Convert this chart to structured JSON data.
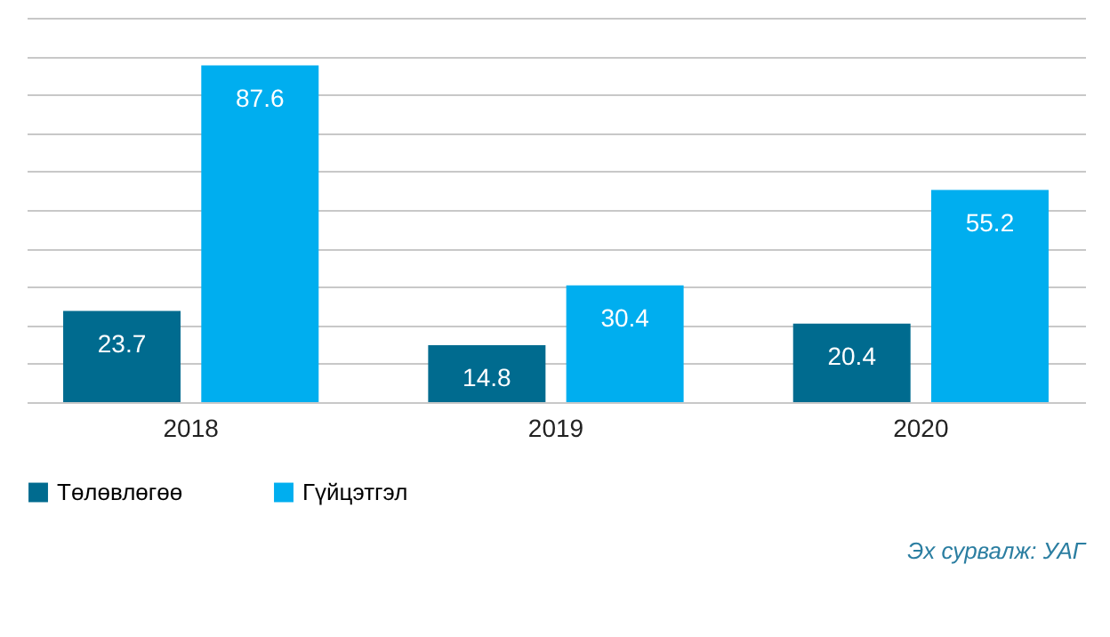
{
  "chart_data": {
    "type": "bar",
    "categories": [
      "2018",
      "2019",
      "2020"
    ],
    "series": [
      {
        "name": "Төлөвлөгөө",
        "color": "#006b8f",
        "values": [
          23.7,
          14.8,
          20.4
        ]
      },
      {
        "name": "Гүйцэтгэл",
        "color": "#00aeef",
        "values": [
          87.6,
          30.4,
          55.2
        ]
      }
    ],
    "ylim": [
      0,
      100
    ],
    "yticks": [
      {
        "value": 0,
        "label": null
      },
      {
        "value": 10,
        "label": null
      },
      {
        "value": 20,
        "label": null
      },
      {
        "value": 30,
        "label": null
      },
      {
        "value": 40,
        "label": null
      },
      {
        "value": 50,
        "label": null
      },
      {
        "value": 60,
        "label": null
      },
      {
        "value": 70,
        "label": null
      },
      {
        "value": 80,
        "label": null
      },
      {
        "value": 90,
        "label": null
      },
      {
        "value": 100,
        "label": null
      }
    ],
    "grid": "y",
    "legend": "bottom",
    "data_labels": true,
    "tick_labels": "x",
    "annotations": [
      "Эх сурвалж: УАГ"
    ]
  }
}
